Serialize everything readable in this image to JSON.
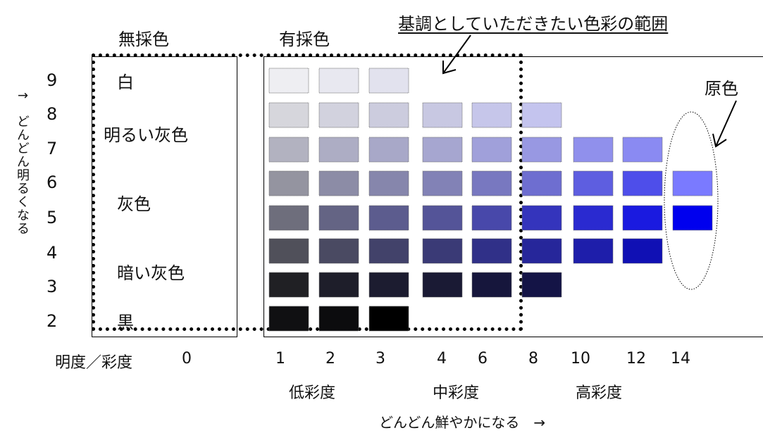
{
  "headers": {
    "achromatic": "無採色",
    "chromatic": "有採色",
    "base_range_title": "基調としていただきたい色彩の範囲",
    "primary": "原色"
  },
  "lightness_axis": {
    "values": [
      "9",
      "8",
      "7",
      "6",
      "5",
      "4",
      "3",
      "2"
    ],
    "label": "↑　どんどん明るくなる"
  },
  "achromatic_labels": {
    "white": "白",
    "light_gray": "明るい灰色",
    "gray": "灰色",
    "dark_gray": "暗い灰色",
    "black": "黒"
  },
  "chroma_axis": {
    "corner_label": "明度／彩度",
    "values": [
      "0",
      "1",
      "2",
      "3",
      "4",
      "6",
      "8",
      "10",
      "12",
      "14"
    ],
    "groups": {
      "low": "低彩度",
      "mid": "中彩度",
      "high": "高彩度"
    },
    "label": "どんどん鮮やかになる　→"
  },
  "swatch_grid": {
    "chroma_columns": [
      1,
      2,
      3,
      4,
      6,
      8,
      10,
      12,
      14
    ],
    "rows": [
      {
        "value": 9,
        "colors": [
          "#eeeef2",
          "#e8e8f0",
          "#e2e2ee",
          null,
          null,
          null,
          null,
          null,
          null
        ]
      },
      {
        "value": 8,
        "colors": [
          "#d6d6dc",
          "#d2d2de",
          "#ccccde",
          "#c8c8e2",
          "#c6c6ea",
          "#c4c4ee",
          null,
          null,
          null
        ]
      },
      {
        "value": 7,
        "colors": [
          "#b2b2c0",
          "#adadc4",
          "#a8a8c8",
          "#a6a6d0",
          "#a0a0da",
          "#9898e2",
          "#9090ec",
          "#8a8af2",
          null
        ]
      },
      {
        "value": 6,
        "colors": [
          "#9494a0",
          "#8c8ca6",
          "#8686ac",
          "#8282b6",
          "#7878c0",
          "#6e6ed0",
          "#5e5ee0",
          "#4e4eea",
          "#7a7aff"
        ]
      },
      {
        "value": 5,
        "colors": [
          "#6e6e7c",
          "#646484",
          "#5c5c8e",
          "#545498",
          "#4848aa",
          "#3434bc",
          "#2a2ad0",
          "#1a1ae0",
          "#0000ee"
        ]
      },
      {
        "value": 4,
        "colors": [
          "#50505a",
          "#4a4a62",
          "#42426a",
          "#3a3a76",
          "#303088",
          "#26269a",
          "#1e1eaa",
          "#1010b4",
          null
        ]
      },
      {
        "value": 3,
        "colors": [
          "#202024",
          "#1e1e2a",
          "#1c1c30",
          "#1a1a34",
          "#16163c",
          "#141446",
          null,
          null,
          null
        ]
      },
      {
        "value": 2,
        "colors": [
          "#101012",
          "#0c0c0e",
          "#000000",
          null,
          null,
          null,
          null,
          null,
          null
        ]
      }
    ]
  },
  "colors": {
    "swatch_outline": "#6a6a6a",
    "frame_line": "#000000"
  }
}
